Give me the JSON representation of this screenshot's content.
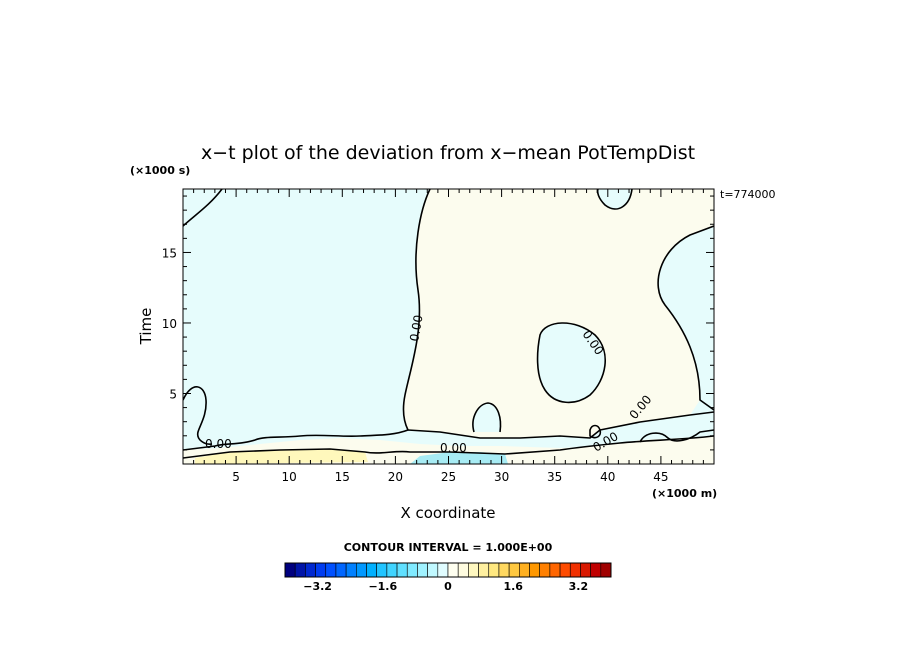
{
  "chart_data": {
    "type": "heatmap",
    "title": "x−t plot of the deviation from x−mean PotTempDist",
    "xlabel": "X coordinate",
    "ylabel": "Time",
    "x_unit_label": "(×1000 m)",
    "y_unit_label": "(×1000 s)",
    "time_stamp": "t=774000",
    "xlim": [
      0,
      50
    ],
    "ylim": [
      0,
      19.5
    ],
    "x_ticks": [
      5,
      10,
      15,
      20,
      25,
      30,
      35,
      40,
      45
    ],
    "y_ticks": [
      5,
      10,
      15
    ],
    "contour_label": "0.00",
    "contour_interval_text": "CONTOUR INTERVAL = 1.000E+00",
    "colorbar": {
      "range": [
        -4.0,
        4.0
      ],
      "tick_values": [
        -3.2,
        -1.6,
        0,
        1.6,
        3.2
      ],
      "tick_labels": [
        "−3.2",
        "−1.6",
        "0",
        "1.6",
        "3.2"
      ],
      "colors": [
        "#00007f",
        "#0014a8",
        "#0028d0",
        "#003cf0",
        "#0050ff",
        "#0066ff",
        "#0080ff",
        "#0098ff",
        "#00b0ff",
        "#20c4ff",
        "#40d4ff",
        "#60e0ff",
        "#80eaff",
        "#a0f2ff",
        "#c0f8ff",
        "#e0fcff",
        "#fffff0",
        "#fffce0",
        "#fff8c0",
        "#fff0a0",
        "#ffe880",
        "#ffd860",
        "#ffc840",
        "#ffb020",
        "#ff9800",
        "#ff8000",
        "#ff6600",
        "#ff4c00",
        "#f03000",
        "#d81800",
        "#c00000",
        "#a00000"
      ]
    },
    "regions": [
      {
        "sign": "negative",
        "color": "#e6fcfc"
      },
      {
        "sign": "positive",
        "color": "#fcfcee"
      },
      {
        "sign": "positive-strong",
        "color": "#fff8bc"
      },
      {
        "sign": "negative-strong",
        "color": "#a8ecf4"
      }
    ]
  }
}
